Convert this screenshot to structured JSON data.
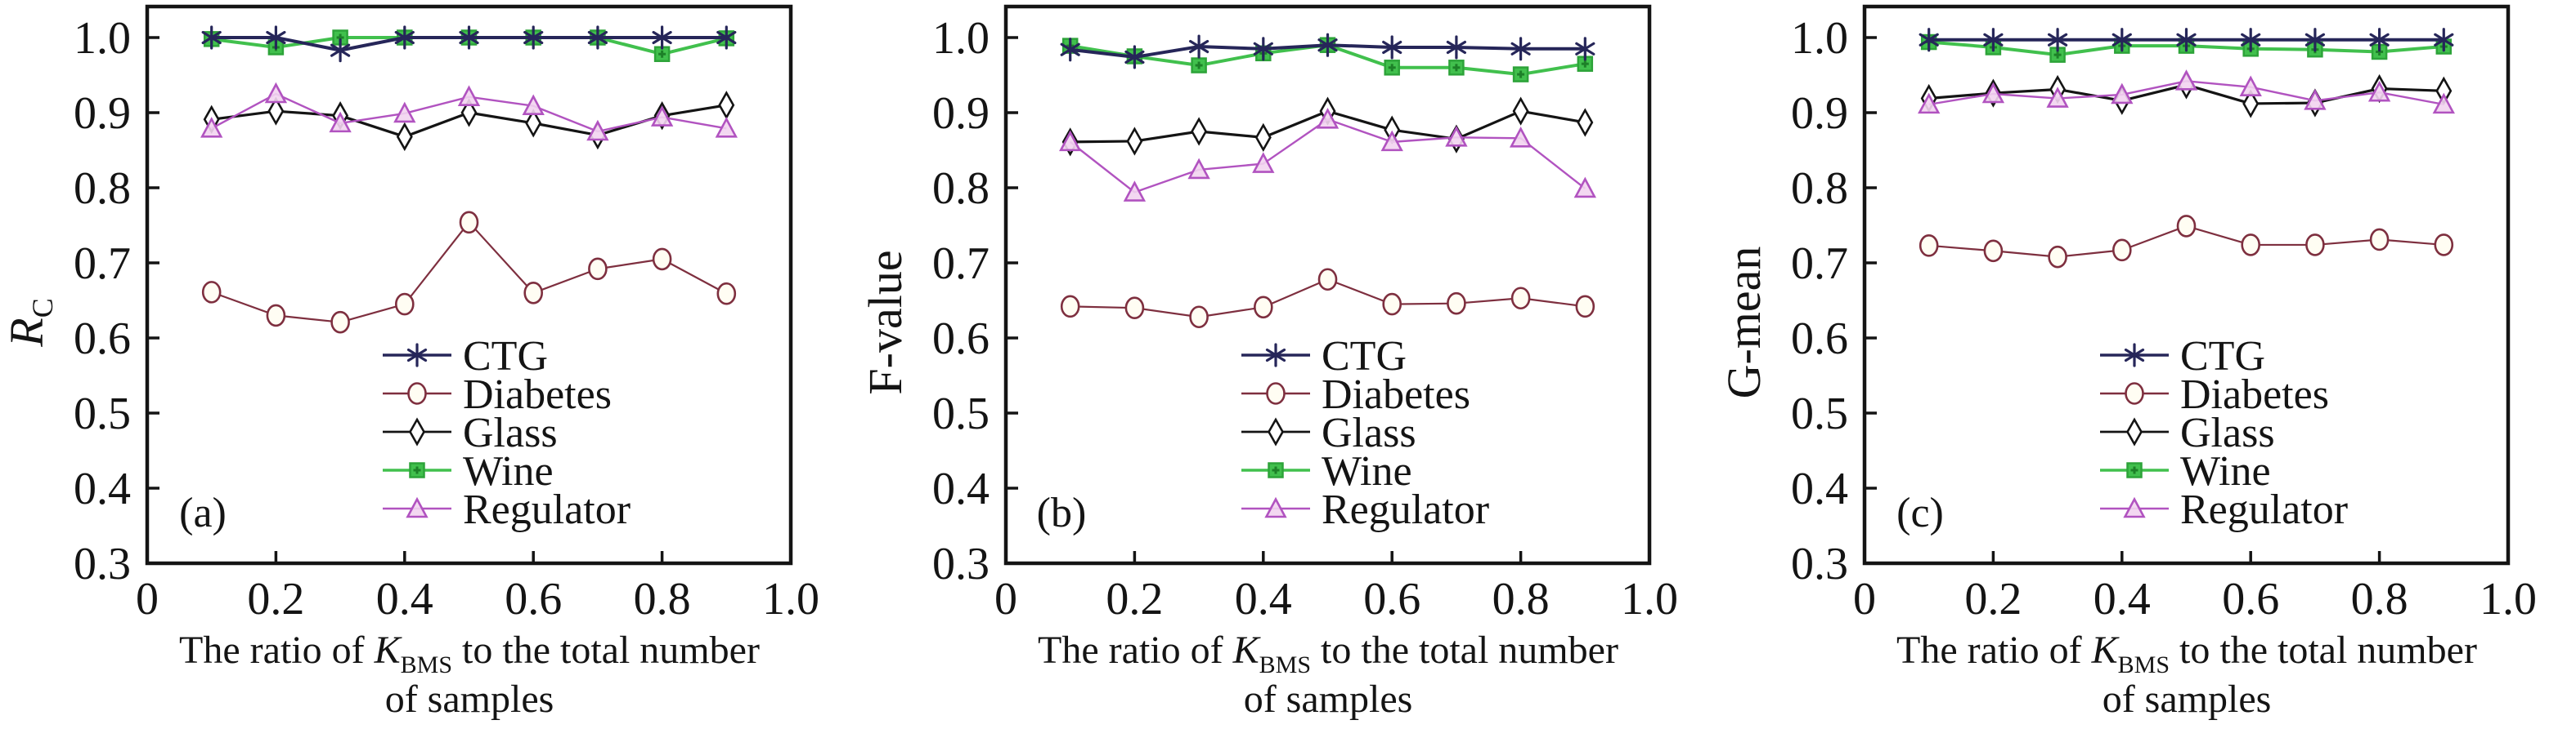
{
  "figure": {
    "background": "#ffffff",
    "axis_color": "#141414",
    "legend_entries": [
      "CTG",
      "Diabetes",
      "Glass",
      "Wine",
      "Regulator"
    ],
    "series_colors": {
      "CTG": "#262659",
      "Diabetes": "#7e2f3f",
      "Glass": "#141414",
      "Wine": "#41c04d",
      "Regulator": "#b153c0"
    }
  },
  "chart_data": [
    {
      "type": "line",
      "panel_label": "(a)",
      "ylabel_runs": [
        {
          "t": "R",
          "style": "italic"
        },
        {
          "t": "C",
          "style": "sub"
        }
      ],
      "xlabel_runs": [
        {
          "t": "The ratio of ",
          "style": "normal"
        },
        {
          "t": "K",
          "style": "italic"
        },
        {
          "t": "BMS",
          "style": "sub"
        },
        {
          "t": " to the total number",
          "style": "normal"
        }
      ],
      "xlabel_line2": "of samples",
      "x": [
        0.1,
        0.2,
        0.3,
        0.4,
        0.5,
        0.6,
        0.7,
        0.8,
        0.9
      ],
      "xlim": [
        0,
        1.0
      ],
      "ylim": [
        0.3,
        1.04
      ],
      "grid": false,
      "legend_position": "inside-lower-middle",
      "xticks": [
        {
          "v": 0,
          "label": "0"
        },
        {
          "v": 0.2,
          "label": "0.2"
        },
        {
          "v": 0.4,
          "label": "0.4"
        },
        {
          "v": 0.6,
          "label": "0.6"
        },
        {
          "v": 0.8,
          "label": "0.8"
        },
        {
          "v": 1.0,
          "label": "1.0"
        }
      ],
      "yticks": [
        {
          "v": 0.3,
          "label": "0.3"
        },
        {
          "v": 0.4,
          "label": "0.4"
        },
        {
          "v": 0.5,
          "label": "0.5"
        },
        {
          "v": 0.6,
          "label": "0.6"
        },
        {
          "v": 0.7,
          "label": "0.7"
        },
        {
          "v": 0.8,
          "label": "0.8"
        },
        {
          "v": 0.9,
          "label": "0.9"
        },
        {
          "v": 1.0,
          "label": "1.0"
        }
      ],
      "draw_order": [
        1,
        2,
        4,
        3,
        0
      ],
      "series": [
        {
          "name": "CTG",
          "marker": "asterisk",
          "color": "#262659",
          "line_width": 4,
          "values": [
            1.0,
            1.0,
            0.983,
            1.0,
            1.0,
            1.0,
            1.0,
            1.0,
            1.0
          ]
        },
        {
          "name": "Diabetes",
          "marker": "circle",
          "color": "#7e2f3f",
          "line_width": 2.2,
          "values": [
            0.661,
            0.63,
            0.621,
            0.645,
            0.754,
            0.66,
            0.692,
            0.705,
            0.659
          ]
        },
        {
          "name": "Glass",
          "marker": "diamond",
          "color": "#141414",
          "line_width": 3.2,
          "values": [
            0.891,
            0.902,
            0.896,
            0.868,
            0.9,
            0.886,
            0.87,
            0.896,
            0.91
          ]
        },
        {
          "name": "Wine",
          "marker": "square",
          "color": "#41c04d",
          "line_width": 4,
          "values": [
            0.998,
            0.987,
            1.0,
            1.0,
            1.0,
            1.0,
            1.0,
            0.978,
            0.999
          ]
        },
        {
          "name": "Regulator",
          "marker": "triangle",
          "color": "#b153c0",
          "line_width": 2.4,
          "values": [
            0.879,
            0.925,
            0.886,
            0.899,
            0.921,
            0.909,
            0.875,
            0.894,
            0.879
          ]
        }
      ]
    },
    {
      "type": "line",
      "panel_label": "(b)",
      "ylabel_runs": [
        {
          "t": "F-value",
          "style": "normal"
        }
      ],
      "xlabel_runs": [
        {
          "t": "The ratio of ",
          "style": "normal"
        },
        {
          "t": "K",
          "style": "italic"
        },
        {
          "t": "BMS",
          "style": "sub"
        },
        {
          "t": " to the total number",
          "style": "normal"
        }
      ],
      "xlabel_line2": "of samples",
      "x": [
        0.1,
        0.2,
        0.3,
        0.4,
        0.5,
        0.6,
        0.7,
        0.8,
        0.9
      ],
      "xlim": [
        0,
        1.0
      ],
      "ylim": [
        0.3,
        1.04
      ],
      "grid": false,
      "legend_position": "inside-lower-middle",
      "xticks": [
        {
          "v": 0,
          "label": "0"
        },
        {
          "v": 0.2,
          "label": "0.2"
        },
        {
          "v": 0.4,
          "label": "0.4"
        },
        {
          "v": 0.6,
          "label": "0.6"
        },
        {
          "v": 0.8,
          "label": "0.8"
        },
        {
          "v": 1.0,
          "label": "1.0"
        }
      ],
      "yticks": [
        {
          "v": 0.3,
          "label": "0.3"
        },
        {
          "v": 0.4,
          "label": "0.4"
        },
        {
          "v": 0.5,
          "label": "0.5"
        },
        {
          "v": 0.6,
          "label": "0.6"
        },
        {
          "v": 0.7,
          "label": "0.7"
        },
        {
          "v": 0.8,
          "label": "0.8"
        },
        {
          "v": 0.9,
          "label": "0.9"
        },
        {
          "v": 1.0,
          "label": "1.0"
        }
      ],
      "draw_order": [
        1,
        2,
        4,
        3,
        0
      ],
      "series": [
        {
          "name": "CTG",
          "marker": "asterisk",
          "color": "#262659",
          "line_width": 4,
          "values": [
            0.984,
            0.974,
            0.988,
            0.985,
            0.99,
            0.987,
            0.987,
            0.985,
            0.985
          ]
        },
        {
          "name": "Diabetes",
          "marker": "circle",
          "color": "#7e2f3f",
          "line_width": 2.2,
          "values": [
            0.642,
            0.64,
            0.628,
            0.641,
            0.678,
            0.645,
            0.646,
            0.653,
            0.642
          ]
        },
        {
          "name": "Glass",
          "marker": "diamond",
          "color": "#141414",
          "line_width": 3.2,
          "values": [
            0.861,
            0.862,
            0.875,
            0.867,
            0.902,
            0.877,
            0.865,
            0.902,
            0.887
          ]
        },
        {
          "name": "Wine",
          "marker": "square",
          "color": "#41c04d",
          "line_width": 4,
          "values": [
            0.989,
            0.975,
            0.963,
            0.979,
            0.99,
            0.96,
            0.96,
            0.951,
            0.965
          ]
        },
        {
          "name": "Regulator",
          "marker": "triangle",
          "color": "#b153c0",
          "line_width": 2.4,
          "values": [
            0.861,
            0.794,
            0.824,
            0.832,
            0.891,
            0.861,
            0.867,
            0.866,
            0.799
          ]
        }
      ]
    },
    {
      "type": "line",
      "panel_label": "(c)",
      "ylabel_runs": [
        {
          "t": "G-mean",
          "style": "normal"
        }
      ],
      "xlabel_runs": [
        {
          "t": "The ratio of ",
          "style": "normal"
        },
        {
          "t": "K",
          "style": "italic"
        },
        {
          "t": "BMS",
          "style": "sub"
        },
        {
          "t": " to the total number",
          "style": "normal"
        }
      ],
      "xlabel_line2": "of samples",
      "x": [
        0.1,
        0.2,
        0.3,
        0.4,
        0.5,
        0.6,
        0.7,
        0.8,
        0.9
      ],
      "xlim": [
        0,
        1.0
      ],
      "ylim": [
        0.3,
        1.04
      ],
      "grid": false,
      "legend_position": "inside-lower-middle",
      "xticks": [
        {
          "v": 0,
          "label": "0"
        },
        {
          "v": 0.2,
          "label": "0.2"
        },
        {
          "v": 0.4,
          "label": "0.4"
        },
        {
          "v": 0.6,
          "label": "0.6"
        },
        {
          "v": 0.8,
          "label": "0.8"
        },
        {
          "v": 1.0,
          "label": "1.0"
        }
      ],
      "yticks": [
        {
          "v": 0.3,
          "label": "0.3"
        },
        {
          "v": 0.4,
          "label": "0.4"
        },
        {
          "v": 0.5,
          "label": "0.5"
        },
        {
          "v": 0.6,
          "label": "0.6"
        },
        {
          "v": 0.7,
          "label": "0.7"
        },
        {
          "v": 0.8,
          "label": "0.8"
        },
        {
          "v": 0.9,
          "label": "0.9"
        },
        {
          "v": 1.0,
          "label": "1.0"
        }
      ],
      "draw_order": [
        1,
        2,
        4,
        3,
        0
      ],
      "series": [
        {
          "name": "CTG",
          "marker": "asterisk",
          "color": "#262659",
          "line_width": 4,
          "values": [
            0.997,
            0.997,
            0.997,
            0.997,
            0.997,
            0.997,
            0.997,
            0.997,
            0.997
          ]
        },
        {
          "name": "Diabetes",
          "marker": "circle",
          "color": "#7e2f3f",
          "line_width": 2.2,
          "values": [
            0.723,
            0.716,
            0.708,
            0.717,
            0.749,
            0.724,
            0.724,
            0.731,
            0.724
          ]
        },
        {
          "name": "Glass",
          "marker": "diamond",
          "color": "#141414",
          "line_width": 3.2,
          "values": [
            0.919,
            0.926,
            0.931,
            0.916,
            0.937,
            0.912,
            0.913,
            0.932,
            0.929
          ]
        },
        {
          "name": "Wine",
          "marker": "square",
          "color": "#41c04d",
          "line_width": 4,
          "values": [
            0.994,
            0.987,
            0.977,
            0.989,
            0.989,
            0.985,
            0.984,
            0.981,
            0.988
          ]
        },
        {
          "name": "Regulator",
          "marker": "triangle",
          "color": "#b153c0",
          "line_width": 2.4,
          "values": [
            0.911,
            0.925,
            0.919,
            0.924,
            0.942,
            0.934,
            0.916,
            0.927,
            0.911
          ]
        }
      ]
    }
  ]
}
